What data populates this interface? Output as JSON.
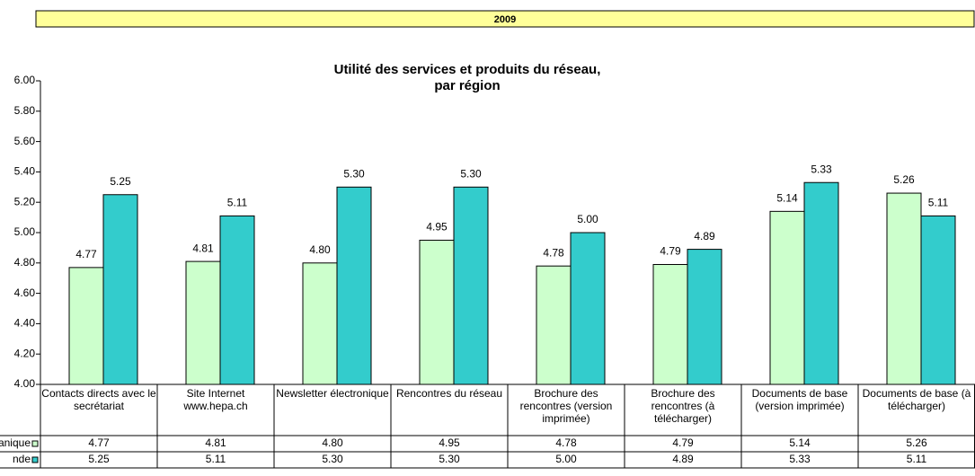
{
  "header": {
    "year": "2009"
  },
  "chart_data": {
    "type": "bar",
    "title": [
      "Utilité des services et produits du réseau,",
      "par région"
    ],
    "categories": [
      "Contacts directs avec le secrétariat",
      "Site Internet www.hepa.ch",
      "Newsletter électronique",
      "Rencontres du réseau",
      "Brochure des rencontres (version imprimée)",
      "Brochure des rencontres (à télécharger)",
      "Documents de base (version imprimée)",
      "Documents de base (à télécharger)"
    ],
    "series": [
      {
        "name": "anique",
        "color": "#ccffcc",
        "values": [
          4.77,
          4.81,
          4.8,
          4.95,
          4.78,
          4.79,
          5.14,
          5.26
        ],
        "value_labels": [
          "4.77",
          "4.81",
          "4.80",
          "4.95",
          "4.78",
          "4.79",
          "5.14",
          "5.26"
        ]
      },
      {
        "name": "nde",
        "color": "#33cccc",
        "values": [
          5.25,
          5.11,
          5.3,
          5.3,
          5.0,
          4.89,
          5.33,
          5.11
        ],
        "value_labels": [
          "5.25",
          "5.11",
          "5.30",
          "5.30",
          "5.00",
          "4.89",
          "5.33",
          "5.11"
        ]
      }
    ],
    "ylim": [
      4,
      6
    ],
    "yticks": [
      {
        "value": 4,
        "label": "4.00"
      },
      {
        "value": 4.2,
        "label": "4.20"
      },
      {
        "value": 4.4,
        "label": "4.40"
      },
      {
        "value": 4.6,
        "label": "4.60"
      },
      {
        "value": 4.8,
        "label": "4.80"
      },
      {
        "value": 5,
        "label": "5.00"
      },
      {
        "value": 5.2,
        "label": "5.20"
      },
      {
        "value": 5.4,
        "label": "5.40"
      },
      {
        "value": 5.6,
        "label": "5.60"
      },
      {
        "value": 5.8,
        "label": "5.80"
      },
      {
        "value": 6,
        "label": "6.00"
      }
    ],
    "data_table": true
  }
}
